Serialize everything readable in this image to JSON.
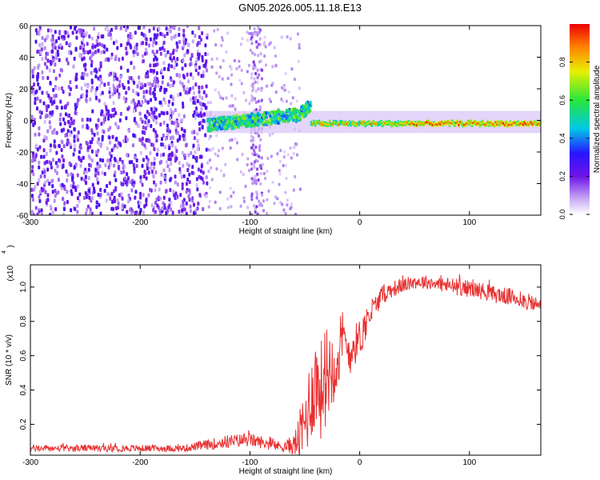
{
  "title": "GN05.2026.005.11.18.E13",
  "chart_data": [
    {
      "type": "heatmap",
      "name": "spectrogram",
      "xlabel": "Height of straight line (km)",
      "ylabel": "Frequency (Hz)",
      "xlim": [
        -300,
        165
      ],
      "ylim": [
        -60,
        60
      ],
      "xticks": [
        -300,
        -200,
        -100,
        0,
        100
      ],
      "yticks": [
        -60,
        -40,
        -20,
        0,
        20,
        40,
        60
      ],
      "colorbar": {
        "label": "Normalized spectral amplitude",
        "range": [
          0,
          1
        ],
        "ticks": [
          "0.0",
          "0.2",
          "0.4",
          "0.6",
          "0.8"
        ],
        "colormap": "rainbow (white-violet-blue-cyan-green-yellow-red)"
      },
      "regions": [
        {
          "x": [
            -300,
            -140
          ],
          "desc": "broadband noise",
          "level": 0.1
        },
        {
          "x": [
            -140,
            -45
          ],
          "desc": "emerging signal near 0 Hz",
          "level": 0.5
        },
        {
          "x": [
            -45,
            165
          ],
          "desc": "strong narrow signal at ~-2 Hz",
          "level": 1.0
        }
      ]
    },
    {
      "type": "line",
      "name": "snr",
      "xlabel": "Height of straight line (km)",
      "ylabel": "SNR (10 * v/v)",
      "yscale_label": "(x10",
      "yscale_exp": "4",
      "xlim": [
        -300,
        165
      ],
      "ylim": [
        0.02,
        1.13
      ],
      "xticks": [
        -300,
        -200,
        -100,
        0,
        100
      ],
      "yticks": [
        0.2,
        0.4,
        0.6,
        0.8,
        1.0
      ],
      "ytick_labels": [
        "0.2",
        "0.4",
        "0.6",
        "0.8",
        "1.0"
      ],
      "series": [
        {
          "name": "SNR",
          "color": "#e83030",
          "x": [
            -300,
            -250,
            -200,
            -160,
            -140,
            -120,
            -100,
            -80,
            -70,
            -60,
            -55,
            -50,
            -45,
            -40,
            -35,
            -30,
            -25,
            -20,
            -15,
            -10,
            -5,
            0,
            5,
            10,
            15,
            20,
            25,
            30,
            40,
            50,
            60,
            70,
            80,
            90,
            100,
            110,
            120,
            130,
            140,
            150,
            160,
            165
          ],
          "y": [
            0.06,
            0.06,
            0.06,
            0.06,
            0.08,
            0.1,
            0.11,
            0.08,
            0.07,
            0.08,
            0.12,
            0.2,
            0.35,
            0.45,
            0.4,
            0.5,
            0.55,
            0.6,
            0.68,
            0.62,
            0.66,
            0.7,
            0.78,
            0.85,
            0.9,
            0.95,
            0.97,
            0.99,
            1.01,
            1.03,
            1.03,
            1.02,
            1.01,
            1.0,
            0.99,
            0.98,
            0.96,
            0.95,
            0.94,
            0.92,
            0.9,
            0.89
          ],
          "noise": [
            0.02,
            0.02,
            0.02,
            0.02,
            0.03,
            0.04,
            0.04,
            0.03,
            0.03,
            0.06,
            0.15,
            0.22,
            0.25,
            0.28,
            0.3,
            0.28,
            0.25,
            0.22,
            0.2,
            0.15,
            0.12,
            0.12,
            0.1,
            0.08,
            0.06,
            0.06,
            0.05,
            0.05,
            0.04,
            0.04,
            0.04,
            0.04,
            0.05,
            0.05,
            0.05,
            0.05,
            0.05,
            0.05,
            0.05,
            0.05,
            0.05,
            0.05
          ]
        }
      ]
    }
  ]
}
